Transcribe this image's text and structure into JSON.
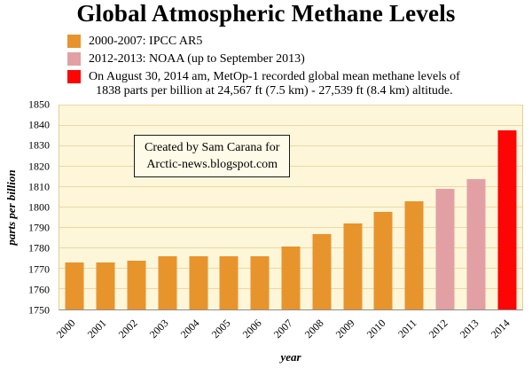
{
  "title": "Global Atmospheric Methane Levels",
  "legend": [
    {
      "label": "2000-2007: IPCC AR5",
      "color": "#E8942D"
    },
    {
      "label": "2012-2013: NOAA (up to September 2013)",
      "color": "#E2A0A5"
    },
    {
      "label_line1": "On August 30, 2014 am, MetOp-1 recorded global mean methane levels of",
      "label_line2": "1838 parts per billion at 24,567 ft (7.5 km) - 27,539 ft (8.4 km) altitude.",
      "color": "#FB0505"
    }
  ],
  "annotation": {
    "line1": "Created by Sam Carana for",
    "line2": "Arctic-news.blogspot.com"
  },
  "chart_data": {
    "type": "bar",
    "title": "Global Atmospheric Methane Levels",
    "categories": [
      "2000",
      "2001",
      "2002",
      "2003",
      "2004",
      "2005",
      "2006",
      "2007",
      "2008",
      "2009",
      "2010",
      "2011",
      "2012",
      "2013",
      "2014"
    ],
    "values": [
      1773,
      1773,
      1774,
      1776,
      1776,
      1776,
      1776,
      1781,
      1787,
      1792,
      1798,
      1803,
      1809,
      1814,
      1838
    ],
    "bar_colors": [
      "#E8942D",
      "#E8942D",
      "#E8942D",
      "#E8942D",
      "#E8942D",
      "#E8942D",
      "#E8942D",
      "#E8942D",
      "#E8942D",
      "#E8942D",
      "#E8942D",
      "#E8942D",
      "#E2A0A5",
      "#E2A0A5",
      "#FB0505"
    ],
    "xlabel": "year",
    "ylabel": "parts per billion",
    "ylim": [
      1750,
      1850
    ],
    "yticks": [
      1750,
      1760,
      1770,
      1780,
      1790,
      1800,
      1810,
      1820,
      1830,
      1840,
      1850
    ],
    "grid": true,
    "legend_position": "top-left",
    "plot_background": "#FDF6D9",
    "gridline_color": "#EBD9A4"
  }
}
